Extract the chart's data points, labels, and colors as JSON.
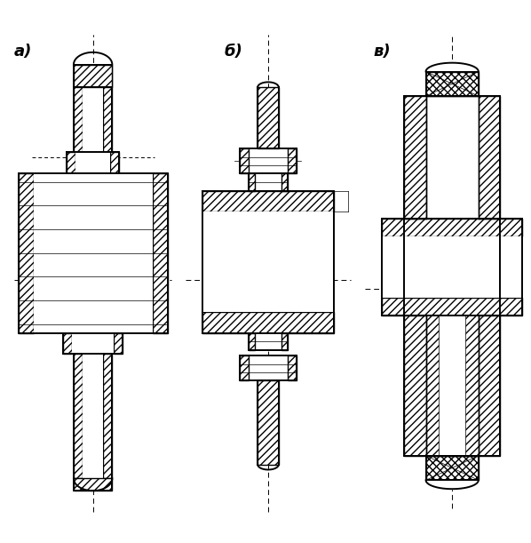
{
  "bg_color": "#ffffff",
  "title_a": "а)",
  "title_b": "б)",
  "title_v": "в)",
  "title_fontsize": 13,
  "fig_width": 5.98,
  "fig_height": 6.11,
  "dpi": 100
}
